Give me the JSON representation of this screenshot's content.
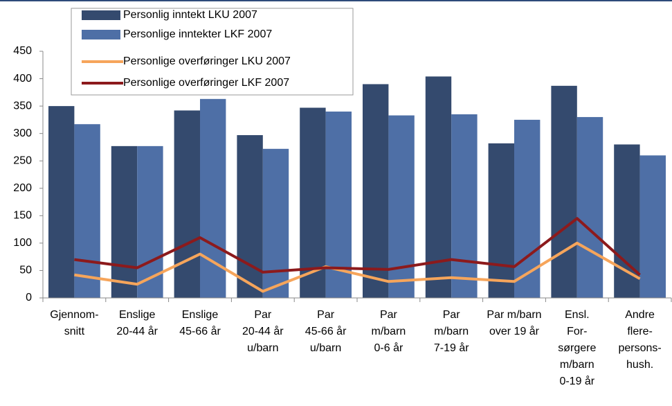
{
  "chart_data": {
    "type": "bar",
    "categories": [
      [
        "Gjennom-",
        "snitt"
      ],
      [
        "Enslige",
        "20-44 år"
      ],
      [
        "Enslige",
        "45-66 år"
      ],
      [
        "Par",
        "20-44 år",
        "u/barn"
      ],
      [
        "Par",
        "45-66 år",
        "u/barn"
      ],
      [
        "Par",
        "m/barn",
        "0-6 år"
      ],
      [
        "Par",
        "m/barn",
        "7-19 år"
      ],
      [
        "Par m/barn",
        "over 19 år"
      ],
      [
        "Ensl.",
        "For-",
        "sørgere",
        "m/barn",
        "0-19 år"
      ],
      [
        "Andre",
        "flere-",
        "persons-",
        "hush."
      ]
    ],
    "series": [
      {
        "name": "Personlig inntekt LKU 2007",
        "type": "bar",
        "color": "#344a6e",
        "values": [
          350,
          277,
          342,
          297,
          347,
          390,
          404,
          282,
          387,
          280
        ]
      },
      {
        "name": "Personlige inntekter LKF 2007",
        "type": "bar",
        "color": "#4e6fa6",
        "values": [
          317,
          277,
          363,
          272,
          340,
          333,
          335,
          325,
          330,
          260
        ]
      },
      {
        "name": "Personlige overføringer LKU 2007",
        "type": "line",
        "color": "#f6a55b",
        "values": [
          42,
          25,
          80,
          12,
          57,
          30,
          37,
          30,
          100,
          35
        ]
      },
      {
        "name": "Personlige overføringer LKF 2007",
        "type": "line",
        "color": "#8c1a1c",
        "values": [
          70,
          55,
          110,
          47,
          55,
          52,
          70,
          57,
          145,
          42
        ]
      }
    ],
    "ylim": [
      0,
      450
    ],
    "yticks": [
      0,
      50,
      100,
      150,
      200,
      250,
      300,
      350,
      400,
      450
    ],
    "grid": false,
    "legend_position": "upper left"
  }
}
